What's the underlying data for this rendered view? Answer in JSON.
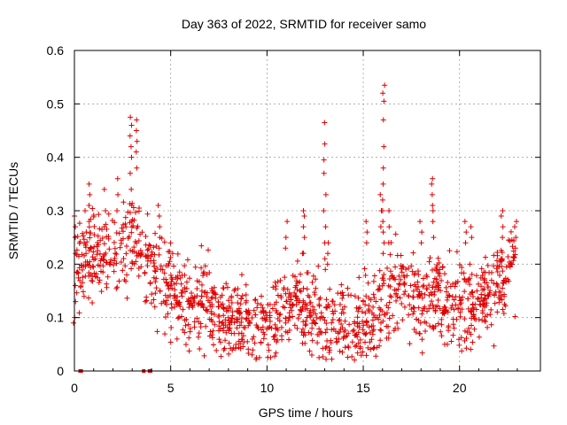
{
  "chart_data": {
    "type": "scatter",
    "title": "Day 363 of 2022, SRMTID for receiver samo",
    "xlabel": "GPS time / hours",
    "ylabel": "SRMTID / TECUs",
    "xlim": [
      0,
      24.2
    ],
    "ylim": [
      0,
      0.6
    ],
    "xticks": [
      0,
      5,
      10,
      15,
      20
    ],
    "yticks": [
      0,
      0.1,
      0.2,
      0.3,
      0.4,
      0.5,
      0.6
    ],
    "xtick_labels": [
      "0",
      "5",
      "10",
      "15",
      "20"
    ],
    "ytick_labels": [
      "0",
      "0.1",
      "0.2",
      "0.3",
      "0.4",
      "0.5",
      "0.6"
    ],
    "grid": true,
    "marker": "plus",
    "color": "#e00000",
    "trend": [
      [
        0.0,
        0.2
      ],
      [
        0.5,
        0.2
      ],
      [
        1.0,
        0.23
      ],
      [
        1.5,
        0.21
      ],
      [
        2.0,
        0.22
      ],
      [
        2.5,
        0.24
      ],
      [
        3.0,
        0.26
      ],
      [
        3.5,
        0.22
      ],
      [
        4.0,
        0.18
      ],
      [
        4.5,
        0.17
      ],
      [
        5.0,
        0.16
      ],
      [
        5.5,
        0.14
      ],
      [
        6.0,
        0.13
      ],
      [
        6.5,
        0.12
      ],
      [
        7.0,
        0.13
      ],
      [
        7.5,
        0.1
      ],
      [
        8.0,
        0.09
      ],
      [
        8.5,
        0.1
      ],
      [
        9.0,
        0.09
      ],
      [
        9.5,
        0.08
      ],
      [
        10.0,
        0.09
      ],
      [
        10.5,
        0.1
      ],
      [
        11.0,
        0.12
      ],
      [
        11.5,
        0.13
      ],
      [
        12.0,
        0.12
      ],
      [
        12.5,
        0.1
      ],
      [
        13.0,
        0.09
      ],
      [
        13.5,
        0.1
      ],
      [
        14.0,
        0.08
      ],
      [
        14.5,
        0.09
      ],
      [
        15.0,
        0.1
      ],
      [
        15.5,
        0.09
      ],
      [
        16.0,
        0.12
      ],
      [
        16.5,
        0.15
      ],
      [
        17.0,
        0.15
      ],
      [
        17.5,
        0.14
      ],
      [
        18.0,
        0.13
      ],
      [
        18.5,
        0.15
      ],
      [
        19.0,
        0.14
      ],
      [
        19.5,
        0.13
      ],
      [
        20.0,
        0.13
      ],
      [
        20.5,
        0.12
      ],
      [
        21.0,
        0.13
      ],
      [
        21.5,
        0.15
      ],
      [
        22.0,
        0.17
      ],
      [
        22.5,
        0.18
      ],
      [
        22.9,
        0.2
      ]
    ],
    "spread": 0.045,
    "spikes": [
      {
        "x": 0.0,
        "values": [
          0.29,
          0.27,
          0.25,
          0.22,
          0.16,
          0.13,
          0.1,
          0.09
        ]
      },
      {
        "x": 0.6,
        "values": [
          0.3,
          0.26,
          0.22
        ]
      },
      {
        "x": 0.8,
        "values": [
          0.35,
          0.33,
          0.31,
          0.28
        ]
      },
      {
        "x": 1.6,
        "values": [
          0.34,
          0.3,
          0.27
        ]
      },
      {
        "x": 2.2,
        "values": [
          0.36,
          0.33,
          0.3
        ]
      },
      {
        "x": 2.95,
        "values": [
          0.475,
          0.46,
          0.44,
          0.42,
          0.4,
          0.37,
          0.34,
          0.31,
          0.28
        ]
      },
      {
        "x": 3.2,
        "values": [
          0.47,
          0.45,
          0.43,
          0.41,
          0.38
        ]
      },
      {
        "x": 4.4,
        "values": [
          0.31,
          0.29,
          0.27,
          0.25,
          0.23
        ]
      },
      {
        "x": 11.0,
        "values": [
          0.28,
          0.25,
          0.23
        ]
      },
      {
        "x": 11.9,
        "values": [
          0.3,
          0.29,
          0.27,
          0.25,
          0.22
        ]
      },
      {
        "x": 13.0,
        "values": [
          0.465,
          0.425,
          0.395,
          0.37,
          0.33,
          0.3,
          0.27,
          0.24,
          0.21,
          0.19
        ]
      },
      {
        "x": 13.2,
        "values": [
          0.24,
          0.22,
          0.2
        ]
      },
      {
        "x": 15.2,
        "values": [
          0.28,
          0.26,
          0.24
        ]
      },
      {
        "x": 16.05,
        "values": [
          0.535,
          0.52,
          0.505,
          0.47,
          0.42,
          0.38,
          0.35,
          0.32,
          0.3,
          0.28,
          0.26,
          0.24,
          0.22
        ]
      },
      {
        "x": 15.9,
        "values": [
          0.33,
          0.3,
          0.27
        ]
      },
      {
        "x": 16.3,
        "values": [
          0.3,
          0.27,
          0.24
        ]
      },
      {
        "x": 18.0,
        "values": [
          0.28,
          0.26,
          0.24
        ]
      },
      {
        "x": 18.6,
        "values": [
          0.36,
          0.35,
          0.33,
          0.31,
          0.3,
          0.28,
          0.25
        ]
      },
      {
        "x": 20.3,
        "values": [
          0.28,
          0.26,
          0.24
        ]
      },
      {
        "x": 20.6,
        "values": [
          0.27,
          0.25
        ]
      },
      {
        "x": 22.2,
        "values": [
          0.3,
          0.29,
          0.27,
          0.25
        ]
      },
      {
        "x": 22.9,
        "values": [
          0.28,
          0.27,
          0.25,
          0.23
        ]
      }
    ],
    "baseline_points": [
      {
        "x": 0.3,
        "y": 0.0
      },
      {
        "x": 0.35,
        "y": 0.0
      },
      {
        "x": 3.6,
        "y": 0.0
      },
      {
        "x": 3.9,
        "y": 0.0
      },
      {
        "x": 3.95,
        "y": 0.0
      }
    ]
  }
}
